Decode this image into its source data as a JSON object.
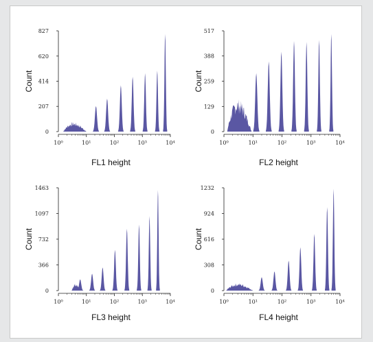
{
  "colors": {
    "fill": "#5a57a3",
    "background": "#e6e7e8",
    "panel": "#ffffff"
  },
  "chart_data": [
    {
      "type": "area",
      "title": "",
      "xlabel": "FL1 height",
      "ylabel": "Count",
      "x_scale": "log",
      "xlim": [
        1,
        10000
      ],
      "ylim": [
        0,
        827
      ],
      "yticks": [
        0,
        207,
        414,
        620,
        827
      ],
      "xticks": [
        1,
        10,
        100,
        1000,
        10000
      ],
      "noise_region": {
        "from": 1.5,
        "to": 10,
        "approx_level": 60
      },
      "peaks": [
        {
          "x": 22,
          "y": 210
        },
        {
          "x": 55,
          "y": 270
        },
        {
          "x": 170,
          "y": 380
        },
        {
          "x": 450,
          "y": 450
        },
        {
          "x": 1250,
          "y": 480
        },
        {
          "x": 3400,
          "y": 500
        },
        {
          "x": 6500,
          "y": 800
        }
      ]
    },
    {
      "type": "area",
      "title": "",
      "xlabel": "FL2 height",
      "ylabel": "Count",
      "x_scale": "log",
      "xlim": [
        1,
        10000
      ],
      "ylim": [
        0,
        517
      ],
      "yticks": [
        0,
        129,
        259,
        388,
        517
      ],
      "xticks": [
        1,
        10,
        100,
        1000,
        10000
      ],
      "noise_region": {
        "from": 1.3,
        "to": 9,
        "approx_level": 130
      },
      "peaks": [
        {
          "x": 13,
          "y": 300
        },
        {
          "x": 35,
          "y": 360
        },
        {
          "x": 95,
          "y": 410
        },
        {
          "x": 260,
          "y": 465
        },
        {
          "x": 700,
          "y": 460
        },
        {
          "x": 1900,
          "y": 470
        },
        {
          "x": 5000,
          "y": 500
        }
      ]
    },
    {
      "type": "area",
      "title": "",
      "xlabel": "FL3 height",
      "ylabel": "Count",
      "x_scale": "log",
      "xlim": [
        1,
        10000
      ],
      "ylim": [
        0,
        1463
      ],
      "yticks": [
        0,
        366,
        732,
        1097,
        1463
      ],
      "xticks": [
        1,
        10,
        100,
        1000,
        10000
      ],
      "noise_region": {
        "from": 3,
        "to": 6,
        "approx_level": 80
      },
      "peaks": [
        {
          "x": 6,
          "y": 160
        },
        {
          "x": 16,
          "y": 240
        },
        {
          "x": 38,
          "y": 330
        },
        {
          "x": 105,
          "y": 580
        },
        {
          "x": 280,
          "y": 880
        },
        {
          "x": 760,
          "y": 940
        },
        {
          "x": 1800,
          "y": 1060
        },
        {
          "x": 3600,
          "y": 1430
        }
      ]
    },
    {
      "type": "area",
      "title": "",
      "xlabel": "FL4 height",
      "ylabel": "Count",
      "x_scale": "log",
      "xlim": [
        1,
        10000
      ],
      "ylim": [
        0,
        1232
      ],
      "yticks": [
        0,
        308,
        616,
        924,
        1232
      ],
      "xticks": [
        1,
        10,
        100,
        1000,
        10000
      ],
      "noise_region": {
        "from": 1.2,
        "to": 10,
        "approx_level": 70
      },
      "peaks": [
        {
          "x": 20,
          "y": 160
        },
        {
          "x": 55,
          "y": 230
        },
        {
          "x": 170,
          "y": 360
        },
        {
          "x": 430,
          "y": 520
        },
        {
          "x": 1300,
          "y": 680
        },
        {
          "x": 3600,
          "y": 1000
        },
        {
          "x": 6000,
          "y": 1220
        }
      ]
    }
  ]
}
